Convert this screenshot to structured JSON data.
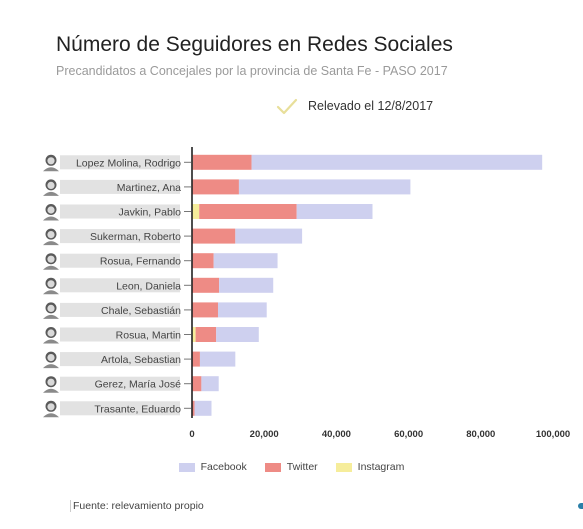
{
  "header": {
    "title": "Número de Seguidores en Redes Sociales",
    "subtitle": "Precandidatos a Concejales por la provincia de Santa Fe - PASO 2017",
    "note": "Relevado el 12/8/2017"
  },
  "footer": {
    "source": "Fuente: relevamiento propio"
  },
  "colors": {
    "facebook": "#ced0ef",
    "twitter": "#ee8b85",
    "instagram": "#f6ed9b",
    "check": "#e8df9a"
  },
  "chart_data": {
    "type": "bar",
    "orientation": "horizontal",
    "stacked": true,
    "categories": [
      "Lopez Molina, Rodrigo",
      "Martinez, Ana",
      "Javkin, Pablo",
      "Sukerman, Roberto",
      "Rosua, Fernando",
      "Leon, Daniela",
      "Chale, Sebastián",
      "Rosua, Martin",
      "Artola, Sebastian",
      "Gerez, María José",
      "Trasante, Eduardo"
    ],
    "series": [
      {
        "name": "Instagram",
        "values": [
          200,
          0,
          2000,
          0,
          0,
          0,
          0,
          1000,
          0,
          0,
          0
        ]
      },
      {
        "name": "Twitter",
        "values": [
          16300,
          13000,
          27000,
          12000,
          6000,
          7500,
          7200,
          5700,
          2200,
          2600,
          700
        ]
      },
      {
        "name": "Facebook",
        "values": [
          80500,
          47500,
          21000,
          18500,
          17700,
          15000,
          13500,
          11800,
          9800,
          4800,
          4700
        ]
      }
    ],
    "xlim": [
      0,
      100000
    ],
    "xticks": [
      0,
      20000,
      40000,
      60000,
      80000,
      100000
    ],
    "xtick_labels": [
      "0",
      "20,000",
      "40,000",
      "60,000",
      "80,000",
      "100,000"
    ],
    "legend": {
      "placement": "bottom",
      "entries": [
        "Facebook",
        "Twitter",
        "Instagram"
      ]
    },
    "grid": false
  }
}
